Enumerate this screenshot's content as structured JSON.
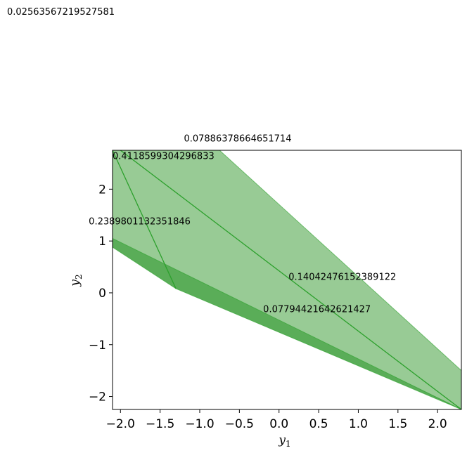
{
  "chart_data": {
    "type": "area",
    "title": "",
    "xlabel": "y",
    "xlabel_sub": "1",
    "ylabel": "y",
    "ylabel_sub": "2",
    "xlim": [
      -2.1,
      2.3
    ],
    "ylim": [
      -2.25,
      2.75
    ],
    "xticks": [
      -2.0,
      -1.5,
      -1.0,
      -0.5,
      0.0,
      0.5,
      1.0,
      1.5,
      2.0
    ],
    "xtick_labels": [
      "−2.0",
      "−1.5",
      "−1.0",
      "−0.5",
      "0.0",
      "0.5",
      "1.0",
      "1.5",
      "2.0"
    ],
    "yticks": [
      -2,
      -1,
      0,
      1,
      2
    ],
    "ytick_labels": [
      "−2",
      "−1",
      "0",
      "1",
      "2"
    ],
    "colors": {
      "light_fill": "#98cb95",
      "dark_fill": "#5aad58",
      "edge": "#2ca02c"
    },
    "regions": [
      {
        "name": "light-region",
        "polygon": [
          [
            -2.1,
            2.75
          ],
          [
            -0.75,
            2.75
          ],
          [
            2.3,
            -1.5
          ],
          [
            2.3,
            -2.25
          ],
          [
            -2.1,
            1.0
          ]
        ]
      },
      {
        "name": "dark-band",
        "polygon": [
          [
            -2.1,
            1.05
          ],
          [
            2.3,
            -2.25
          ],
          [
            -1.3,
            0.08
          ],
          [
            -2.1,
            0.88
          ]
        ]
      }
    ],
    "lines": [
      {
        "name": "diagonal-line",
        "points": [
          [
            -2.0,
            2.75
          ],
          [
            2.3,
            -2.25
          ]
        ]
      },
      {
        "name": "steep-line",
        "points": [
          [
            -2.1,
            2.75
          ],
          [
            -1.3,
            0.08
          ]
        ]
      }
    ],
    "annotations": [
      {
        "text": "0.02563567219527581",
        "fig_anchor": "top-left-outside"
      },
      {
        "text": "0.07886378664651714",
        "x": -1.2,
        "y": 2.92
      },
      {
        "text": "0.4118599304296833",
        "x": -2.1,
        "y": 2.58
      },
      {
        "text": "0.2389801132351846",
        "x": -2.4,
        "y": 1.32
      },
      {
        "text": "0.14042476152389122",
        "x": 0.12,
        "y": 0.25
      },
      {
        "text": "0.07794421642621427",
        "x": -0.2,
        "y": -0.37
      }
    ]
  }
}
